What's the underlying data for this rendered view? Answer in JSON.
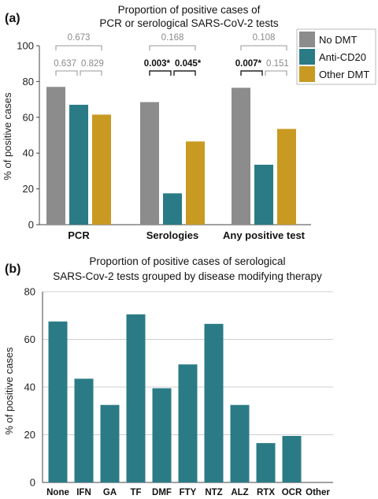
{
  "panel_a": {
    "label": "(a)",
    "title_line1": "Proportion of positive cases of",
    "title_line2": "PCR or serological SARS-CoV-2 tests"
  },
  "panel_b": {
    "label": "(b)",
    "title_line1": "Proportion of positive cases of serological",
    "title_line2": "SARS-Cov-2 tests grouped by disease modifying therapy"
  },
  "colors": {
    "no_dmt": "#8c8c8c",
    "anti_cd20": "#2a7b86",
    "other_dmt": "#c89a22",
    "bracket_dark": "#222222",
    "bracket_light": "#9a9a9a",
    "grid": "#cfcfcf"
  },
  "chart_data": [
    {
      "type": "bar",
      "title": "Proportion of positive cases of PCR or serological SARS-CoV-2 tests",
      "ylabel": "% of positive cases",
      "ylim": [
        0,
        100
      ],
      "yticks": [
        "0",
        "20",
        "40",
        "60",
        "80",
        "100"
      ],
      "grid": false,
      "legend": "top-right",
      "categories": [
        "PCR",
        "Serologies",
        "Any positive test"
      ],
      "series": [
        {
          "name": "No DMT",
          "values": [
            77,
            68.5,
            76.5
          ]
        },
        {
          "name": "Anti-CD20",
          "values": [
            67,
            17.5,
            33.5
          ]
        },
        {
          "name": "Other DMT",
          "values": [
            61.5,
            46.5,
            53.5
          ]
        }
      ],
      "annotations": [
        {
          "group": "PCR",
          "pair": "No DMT vs Anti-CD20",
          "p": "0.637",
          "bold": false
        },
        {
          "group": "PCR",
          "pair": "Anti-CD20 vs Other DMT",
          "p": "0.829",
          "bold": false
        },
        {
          "group": "PCR",
          "pair": "No DMT vs Other DMT",
          "p": "0.673",
          "bold": false
        },
        {
          "group": "Serologies",
          "pair": "No DMT vs Anti-CD20",
          "p": "0.003*",
          "bold": true
        },
        {
          "group": "Serologies",
          "pair": "Anti-CD20 vs Other DMT",
          "p": "0.045*",
          "bold": true
        },
        {
          "group": "Serologies",
          "pair": "No DMT vs Other DMT",
          "p": "0.168",
          "bold": false
        },
        {
          "group": "Any positive test",
          "pair": "No DMT vs Anti-CD20",
          "p": "0.007*",
          "bold": true
        },
        {
          "group": "Any positive test",
          "pair": "Anti-CD20 vs Other DMT",
          "p": "0.151",
          "bold": false
        },
        {
          "group": "Any positive test",
          "pair": "No DMT vs Other DMT",
          "p": "0.108",
          "bold": false
        }
      ]
    },
    {
      "type": "bar",
      "title": "Proportion of positive cases of serological SARS-Cov-2 tests grouped by disease modifying therapy",
      "ylabel": "% of positive cases",
      "ylim": [
        0,
        80
      ],
      "yticks": [
        "0",
        "20",
        "40",
        "60",
        "80"
      ],
      "grid": true,
      "categories": [
        "None",
        "IFN",
        "GA",
        "TF",
        "DMF",
        "FTY",
        "NTZ",
        "ALZ",
        "RTX",
        "OCR",
        "Other"
      ],
      "values": [
        67.5,
        43.5,
        32.5,
        70.5,
        39.5,
        49.5,
        66.5,
        32.5,
        16.5,
        19.5,
        0
      ]
    }
  ]
}
